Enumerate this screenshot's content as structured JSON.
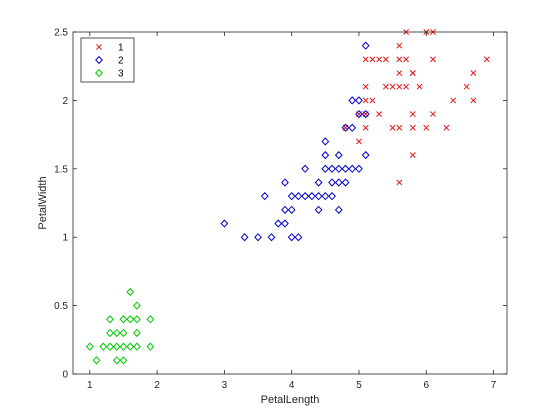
{
  "chart_data": {
    "type": "scatter",
    "title": "",
    "xlabel": "PetalLength",
    "ylabel": "PetalWidth",
    "xlim": [
      0.75,
      7.2
    ],
    "ylim": [
      0,
      2.5
    ],
    "xticks": [
      1,
      2,
      3,
      4,
      5,
      6,
      7
    ],
    "yticks": [
      0,
      0.5,
      1,
      1.5,
      2,
      2.5
    ],
    "xtick_labels": [
      "1",
      "2",
      "3",
      "4",
      "5",
      "6",
      "7"
    ],
    "ytick_labels": [
      "0",
      "0.5",
      "1",
      "1.5",
      "2",
      "2.5"
    ],
    "grid": false,
    "legend_position": "top-left",
    "series": [
      {
        "name": "1",
        "marker": "x",
        "color": "#e31a1c",
        "points": [
          [
            5.7,
            2.5
          ],
          [
            6.0,
            2.5
          ],
          [
            6.1,
            2.5
          ],
          [
            5.6,
            2.4
          ],
          [
            5.1,
            2.3
          ],
          [
            5.2,
            2.3
          ],
          [
            5.3,
            2.3
          ],
          [
            5.4,
            2.3
          ],
          [
            5.6,
            2.3
          ],
          [
            6.1,
            2.3
          ],
          [
            6.9,
            2.3
          ],
          [
            5.7,
            2.3
          ],
          [
            5.8,
            2.2
          ],
          [
            5.6,
            2.2
          ],
          [
            6.7,
            2.2
          ],
          [
            5.1,
            2.1
          ],
          [
            5.4,
            2.1
          ],
          [
            5.5,
            2.1
          ],
          [
            5.6,
            2.1
          ],
          [
            5.7,
            2.1
          ],
          [
            6.6,
            2.1
          ],
          [
            5.8,
            2.2
          ],
          [
            5.1,
            2.0
          ],
          [
            5.2,
            2.0
          ],
          [
            6.4,
            2.0
          ],
          [
            6.7,
            2.0
          ],
          [
            5.9,
            2.1
          ],
          [
            5.8,
            1.8
          ],
          [
            4.8,
            1.8
          ],
          [
            5.1,
            1.9
          ],
          [
            5.0,
            1.9
          ],
          [
            5.3,
            1.9
          ],
          [
            5.8,
            1.9
          ],
          [
            6.1,
            1.9
          ],
          [
            5.5,
            1.8
          ],
          [
            5.6,
            1.8
          ],
          [
            6.0,
            1.8
          ],
          [
            6.3,
            1.8
          ],
          [
            5.1,
            1.8
          ],
          [
            5.8,
            1.6
          ],
          [
            5.0,
            1.7
          ],
          [
            5.6,
            1.4
          ]
        ]
      },
      {
        "name": "2",
        "marker": "diamond",
        "color": "#0000cc",
        "points": [
          [
            5.1,
            2.4
          ],
          [
            4.9,
            2.0
          ],
          [
            5.0,
            2.0
          ],
          [
            5.0,
            1.9
          ],
          [
            5.1,
            1.9
          ],
          [
            4.9,
            1.8
          ],
          [
            4.8,
            1.8
          ],
          [
            4.5,
            1.7
          ],
          [
            4.5,
            1.6
          ],
          [
            5.1,
            1.6
          ],
          [
            4.7,
            1.6
          ],
          [
            4.2,
            1.5
          ],
          [
            4.5,
            1.5
          ],
          [
            4.6,
            1.5
          ],
          [
            4.7,
            1.5
          ],
          [
            4.8,
            1.5
          ],
          [
            4.9,
            1.5
          ],
          [
            5.0,
            1.5
          ],
          [
            3.9,
            1.4
          ],
          [
            4.4,
            1.4
          ],
          [
            4.6,
            1.4
          ],
          [
            4.7,
            1.4
          ],
          [
            4.8,
            1.4
          ],
          [
            3.6,
            1.3
          ],
          [
            4.0,
            1.3
          ],
          [
            4.1,
            1.3
          ],
          [
            4.2,
            1.3
          ],
          [
            4.3,
            1.3
          ],
          [
            4.4,
            1.3
          ],
          [
            4.5,
            1.3
          ],
          [
            4.6,
            1.3
          ],
          [
            3.9,
            1.2
          ],
          [
            4.0,
            1.2
          ],
          [
            4.4,
            1.2
          ],
          [
            4.7,
            1.2
          ],
          [
            3.8,
            1.1
          ],
          [
            3.9,
            1.1
          ],
          [
            3.0,
            1.1
          ],
          [
            3.3,
            1.0
          ],
          [
            3.5,
            1.0
          ],
          [
            3.7,
            1.0
          ],
          [
            4.0,
            1.0
          ],
          [
            4.1,
            1.0
          ]
        ]
      },
      {
        "name": "3",
        "marker": "diamond",
        "color": "#00cc00",
        "points": [
          [
            1.6,
            0.6
          ],
          [
            1.7,
            0.5
          ],
          [
            1.3,
            0.4
          ],
          [
            1.5,
            0.4
          ],
          [
            1.6,
            0.4
          ],
          [
            1.7,
            0.4
          ],
          [
            1.9,
            0.4
          ],
          [
            1.4,
            0.3
          ],
          [
            1.5,
            0.3
          ],
          [
            1.3,
            0.3
          ],
          [
            1.7,
            0.3
          ],
          [
            1.0,
            0.2
          ],
          [
            1.2,
            0.2
          ],
          [
            1.3,
            0.2
          ],
          [
            1.4,
            0.2
          ],
          [
            1.5,
            0.2
          ],
          [
            1.6,
            0.2
          ],
          [
            1.7,
            0.2
          ],
          [
            1.9,
            0.2
          ],
          [
            1.1,
            0.1
          ],
          [
            1.4,
            0.1
          ],
          [
            1.5,
            0.1
          ]
        ]
      }
    ]
  }
}
